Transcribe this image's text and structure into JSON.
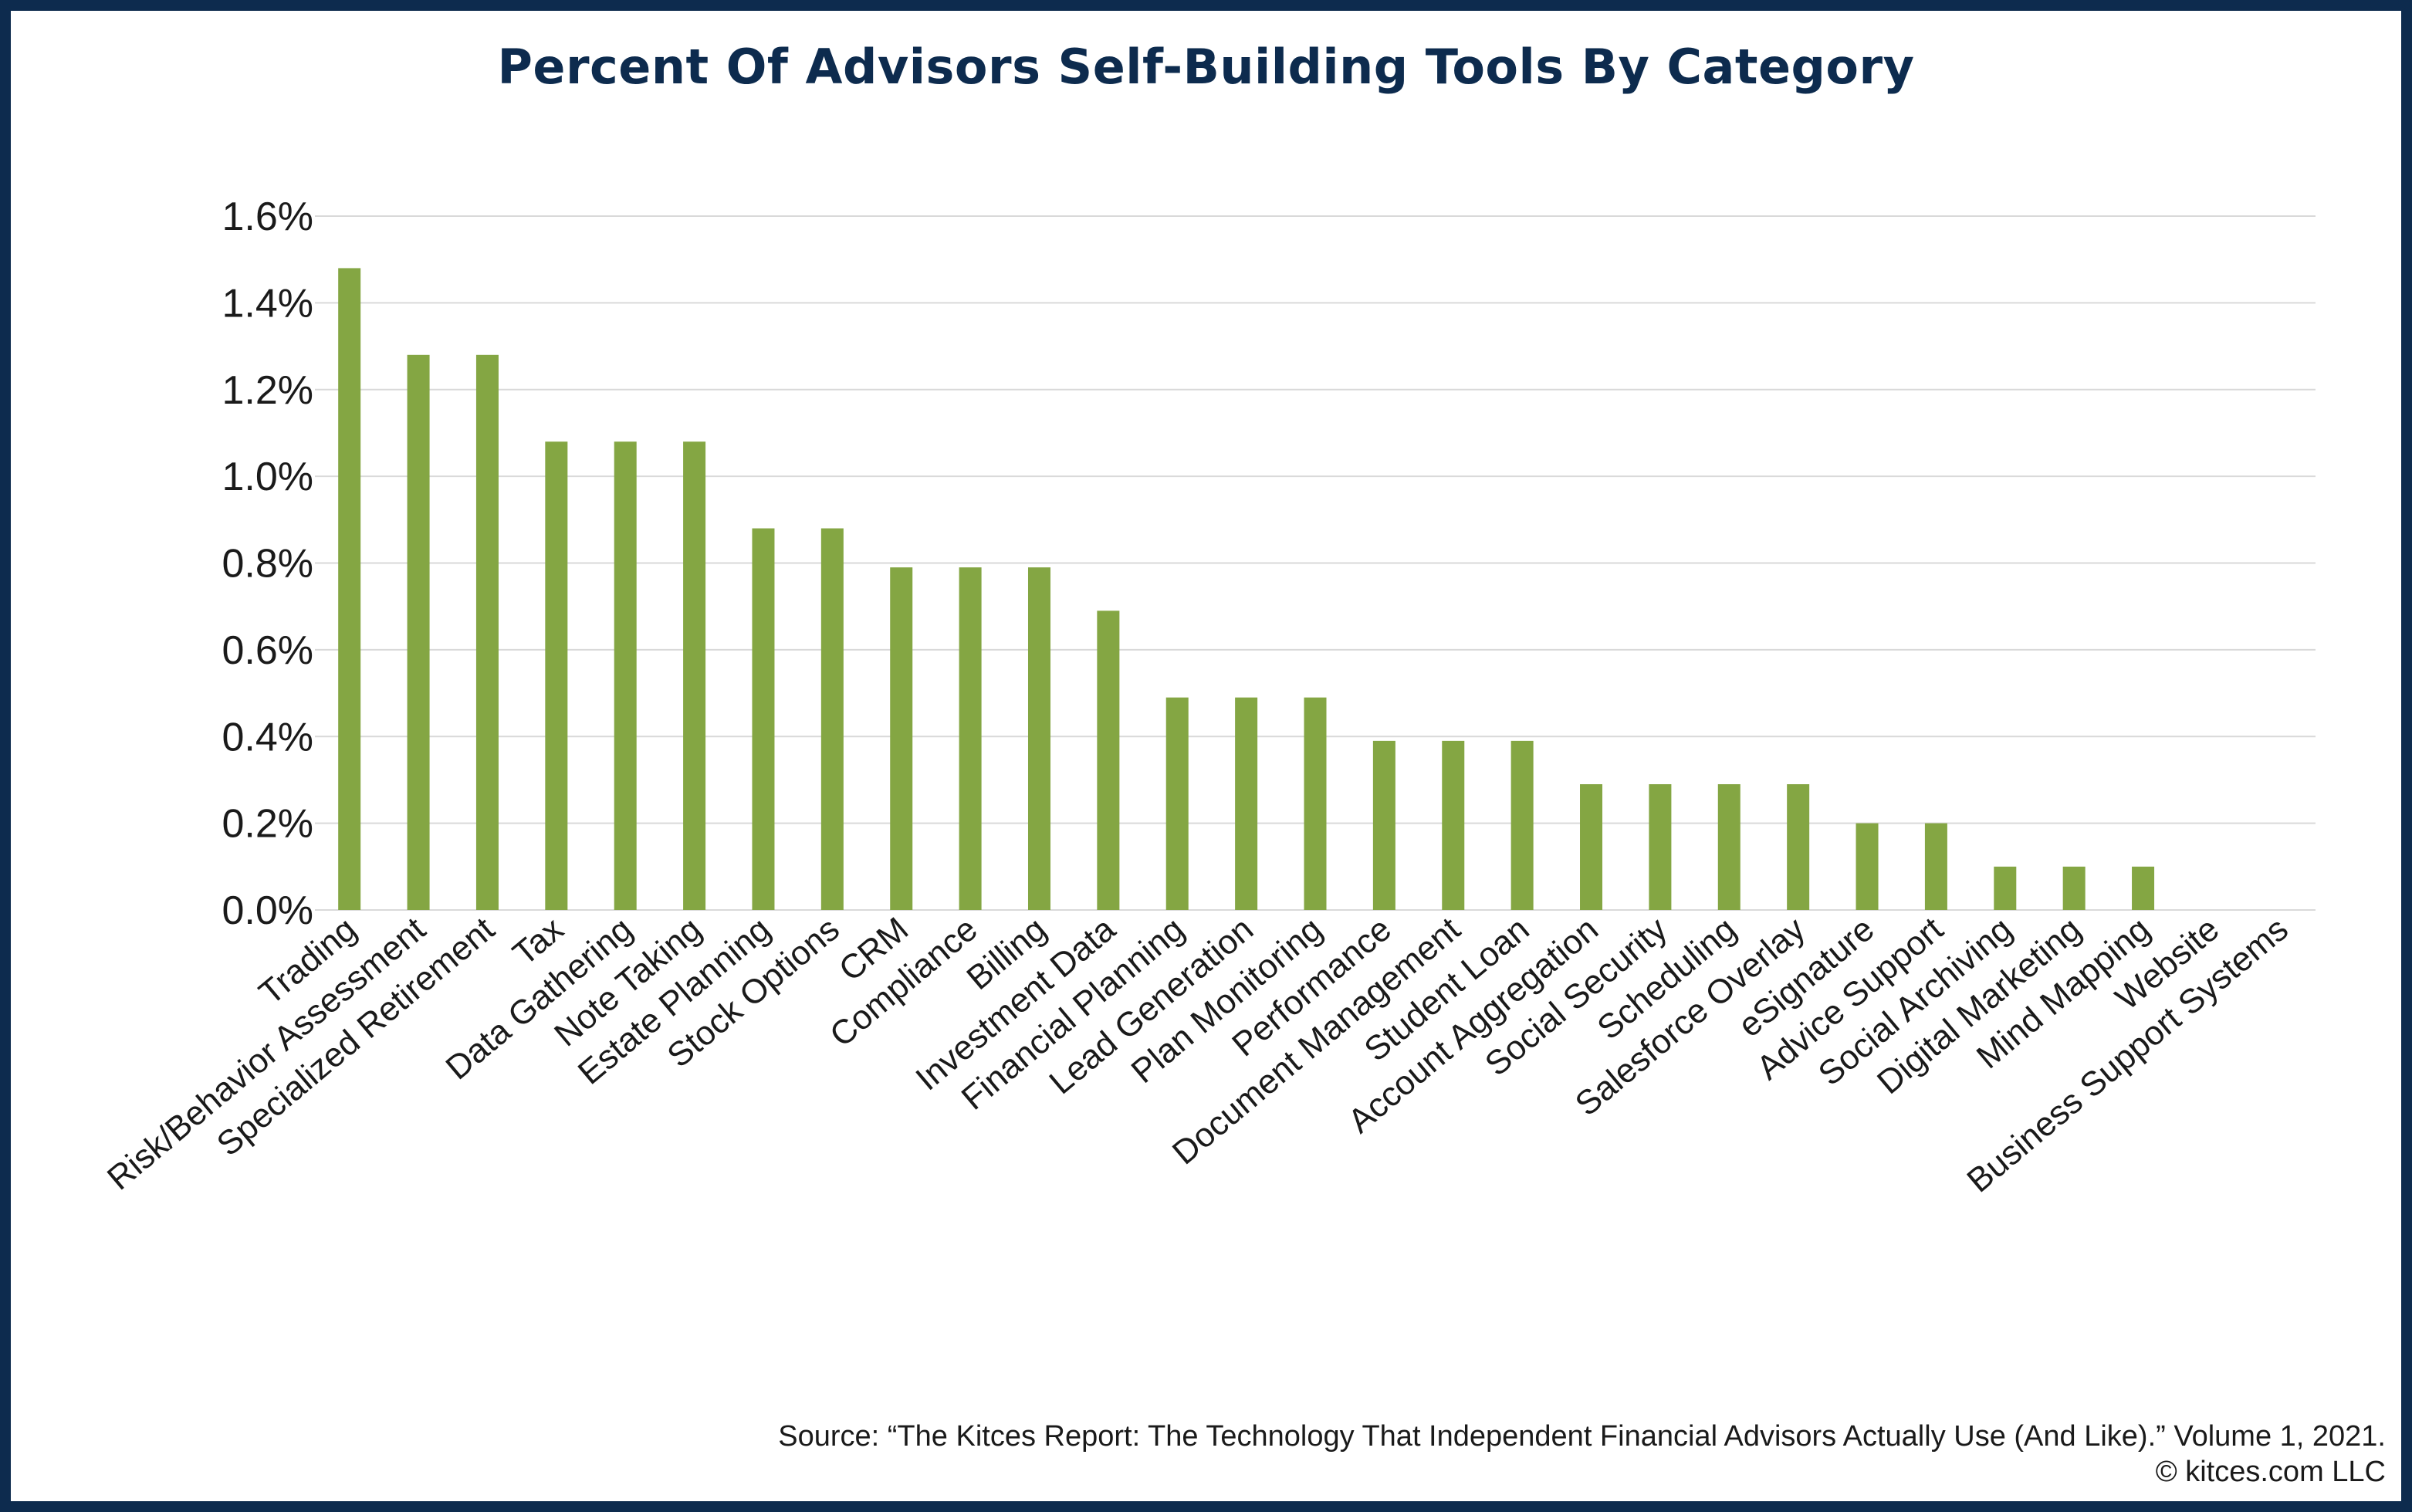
{
  "title": "Percent Of Advisors Self-Building Tools By Category",
  "source_line": "Source: “The Kitces Report: The Technology That Independent Financial Advisors Actually Use (And Like).” Volume 1, 2021.",
  "copyright": "© kitces.com LLC",
  "colors": {
    "bar": "#84a643",
    "frame": "#0d2b4e",
    "title": "#0d2b4e",
    "grid": "#d9d9d9"
  },
  "chart_data": {
    "type": "bar",
    "title": "Percent Of Advisors Self-Building Tools By Category",
    "xlabel": "",
    "ylabel": "",
    "ylim": [
      0,
      1.6
    ],
    "yticks": [
      "0.0%",
      "0.2%",
      "0.4%",
      "0.6%",
      "0.8%",
      "1.0%",
      "1.2%",
      "1.4%",
      "1.6%"
    ],
    "grid": true,
    "legend": "none",
    "categories": [
      "Trading",
      "Risk/Behavior Assessment",
      "Specialized Retirement",
      "Tax",
      "Data Gathering",
      "Note Taking",
      "Estate Planning",
      "Stock Options",
      "CRM",
      "Compliance",
      "Billing",
      "Investment Data",
      "Financial Planning",
      "Lead Generation",
      "Plan Monitoring",
      "Performance",
      "Document Management",
      "Student Loan",
      "Account Aggregation",
      "Social Security",
      "Scheduling",
      "Salesforce Overlay",
      "eSignature",
      "Advice Support",
      "Social Archiving",
      "Digital Marketing",
      "Mind Mapping",
      "Website",
      "Business Support Systems"
    ],
    "values": [
      1.48,
      1.28,
      1.28,
      1.08,
      1.08,
      1.08,
      0.88,
      0.88,
      0.79,
      0.79,
      0.79,
      0.69,
      0.49,
      0.49,
      0.49,
      0.39,
      0.39,
      0.39,
      0.29,
      0.29,
      0.29,
      0.29,
      0.2,
      0.2,
      0.1,
      0.1,
      0.1,
      0.0,
      0.0
    ]
  }
}
